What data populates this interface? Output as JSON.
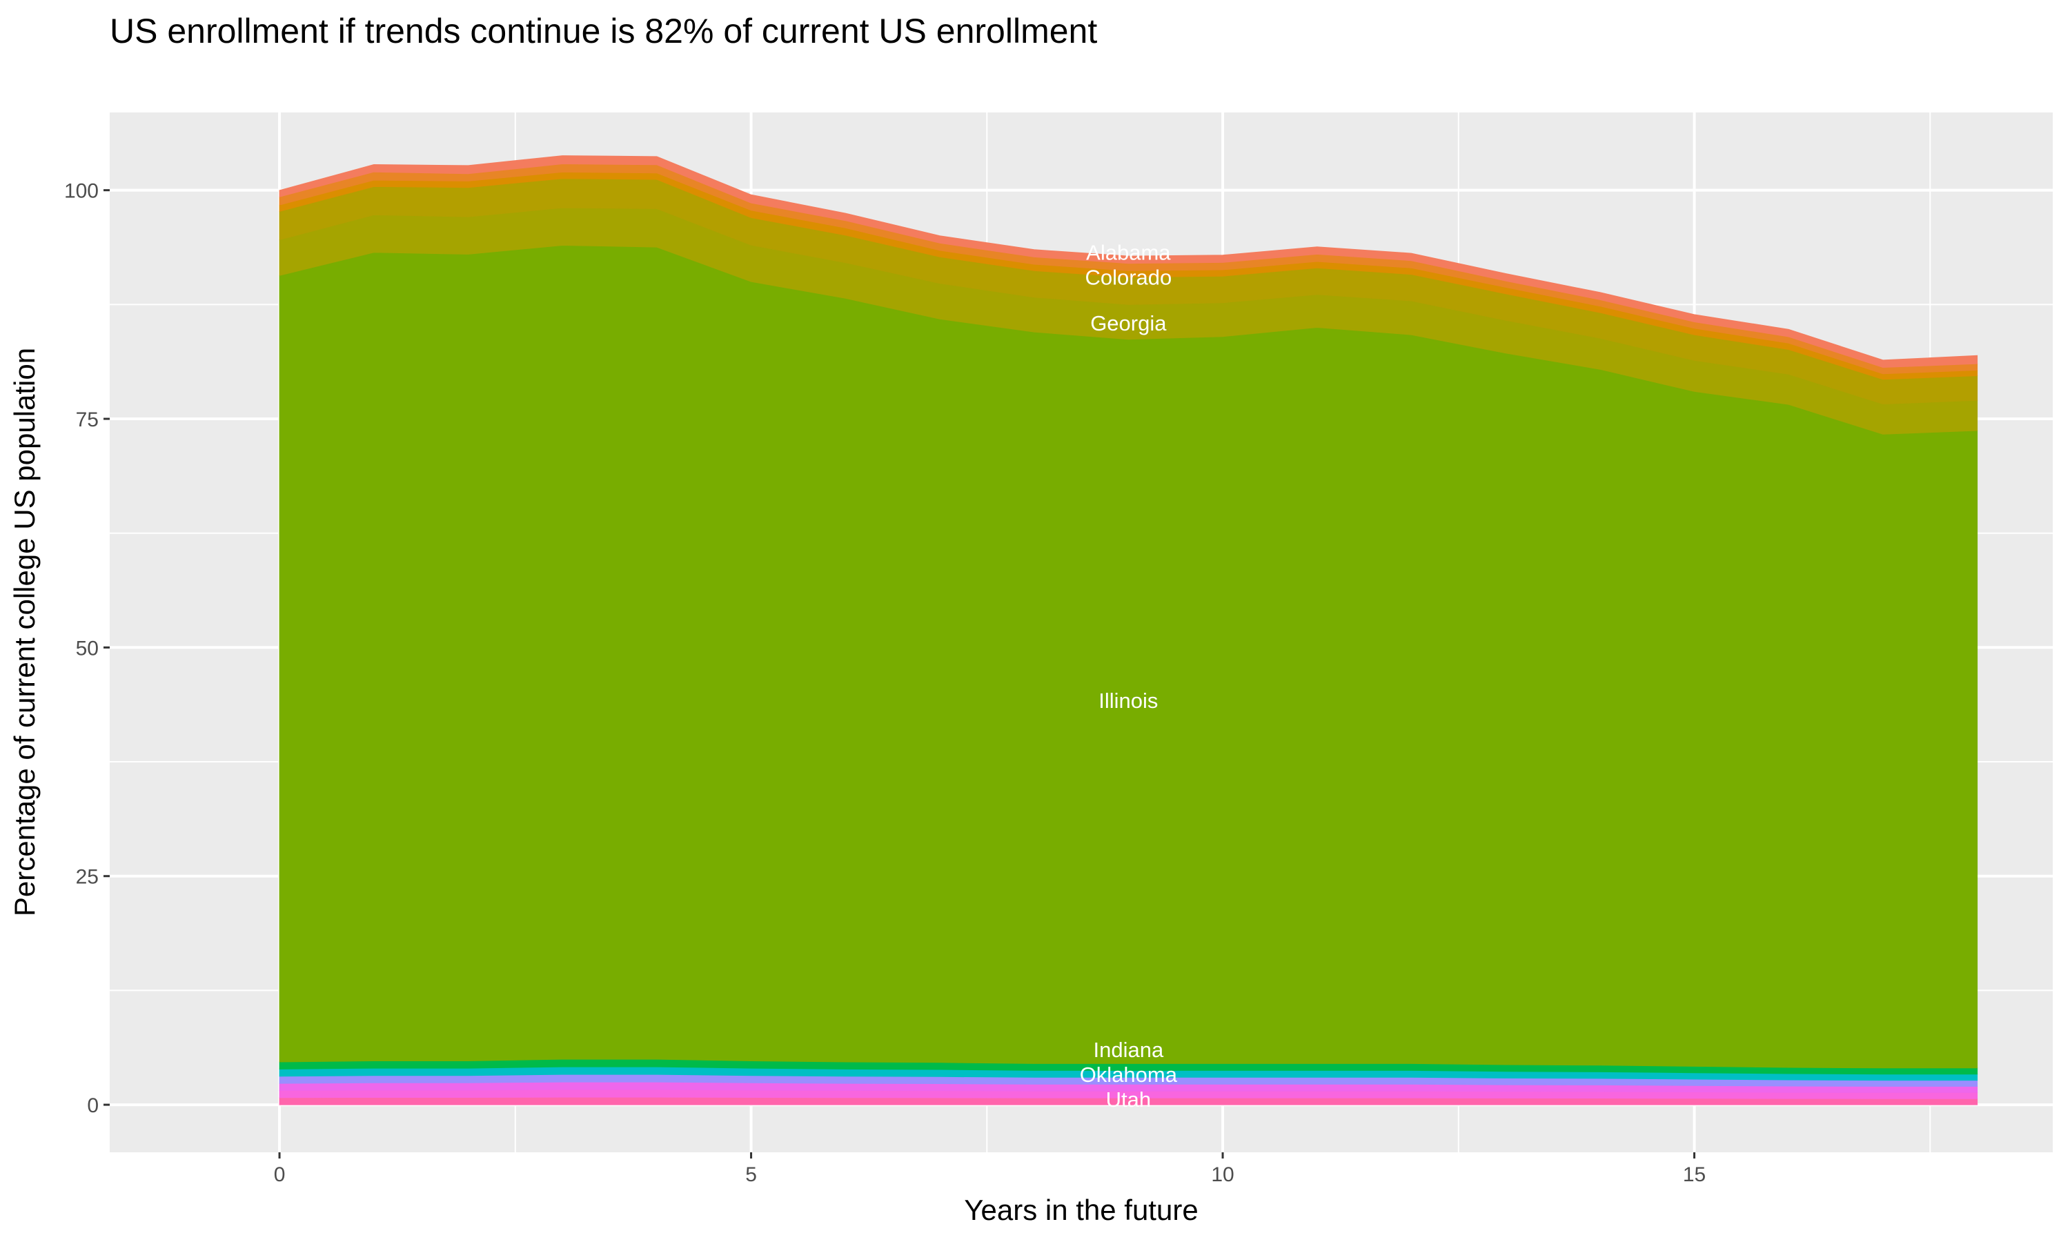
{
  "chart_data": {
    "type": "area",
    "stacked": true,
    "title": "US enrollment if trends continue is 82% of current US enrollment",
    "xlabel": "Years in the future",
    "ylabel": "Percentage of current college US population",
    "x": [
      0,
      1,
      2,
      3,
      4,
      5,
      6,
      7,
      8,
      9,
      10,
      11,
      12,
      13,
      14,
      15,
      16,
      17,
      18
    ],
    "xlim": [
      -1.8,
      18.8
    ],
    "ylim": [
      -5.2,
      108.5
    ],
    "x_ticks": [
      0,
      5,
      10,
      15
    ],
    "y_ticks": [
      0,
      25,
      50,
      75,
      100
    ],
    "x_tick_labels": [
      "0",
      "5",
      "10",
      "15"
    ],
    "y_tick_labels": [
      "0",
      "25",
      "50",
      "75",
      "100"
    ],
    "grid": true,
    "legend": "none",
    "panel_background": "#EBEBEB",
    "series_bottom_to_top": [
      {
        "name": "Utah",
        "color": "#FF65AC",
        "values": [
          0.78,
          0.8,
          0.8,
          0.83,
          0.83,
          0.8,
          0.78,
          0.77,
          0.75,
          0.75,
          0.75,
          0.75,
          0.75,
          0.73,
          0.72,
          0.7,
          0.68,
          0.67,
          0.67
        ]
      },
      {
        "color": "#F866DF",
        "values": [
          0.78,
          0.8,
          0.8,
          0.83,
          0.83,
          0.8,
          0.78,
          0.77,
          0.75,
          0.75,
          0.75,
          0.75,
          0.75,
          0.73,
          0.72,
          0.7,
          0.68,
          0.67,
          0.67
        ]
      },
      {
        "color": "#EE67EC",
        "values": [
          0.78,
          0.8,
          0.8,
          0.83,
          0.83,
          0.8,
          0.78,
          0.77,
          0.75,
          0.75,
          0.75,
          0.75,
          0.75,
          0.73,
          0.72,
          0.7,
          0.68,
          0.67,
          0.67
        ]
      },
      {
        "name": "Oklahoma",
        "color": "#9A8EFF",
        "values": [
          0.78,
          0.8,
          0.8,
          0.83,
          0.83,
          0.8,
          0.78,
          0.77,
          0.75,
          0.75,
          0.75,
          0.75,
          0.75,
          0.73,
          0.72,
          0.7,
          0.68,
          0.67,
          0.67
        ]
      },
      {
        "color": "#00BFC4",
        "values": [
          0.78,
          0.8,
          0.8,
          0.83,
          0.83,
          0.8,
          0.78,
          0.77,
          0.75,
          0.75,
          0.75,
          0.75,
          0.75,
          0.73,
          0.72,
          0.7,
          0.68,
          0.67,
          0.67
        ]
      },
      {
        "name": "Indiana",
        "color": "#00BA4A",
        "values": [
          0.78,
          0.8,
          0.8,
          0.83,
          0.83,
          0.8,
          0.78,
          0.77,
          0.75,
          0.75,
          0.75,
          0.75,
          0.75,
          0.73,
          0.72,
          0.7,
          0.68,
          0.67,
          0.67
        ]
      },
      {
        "name": "Illinois",
        "color": "#78AD00",
        "values": [
          86.0,
          88.4,
          88.2,
          89.0,
          88.8,
          85.2,
          83.5,
          81.3,
          80.0,
          79.2,
          79.5,
          80.5,
          79.7,
          77.8,
          76.1,
          73.8,
          72.5,
          69.3,
          69.7
        ]
      },
      {
        "name": "Georgia",
        "color": "#A5A400",
        "values": [
          3.9,
          4.1,
          4.1,
          4.1,
          4.2,
          4.0,
          3.9,
          3.9,
          3.8,
          3.8,
          3.7,
          3.6,
          3.7,
          3.6,
          3.4,
          3.4,
          3.3,
          3.3,
          3.3
        ]
      },
      {
        "name": "Colorado",
        "color": "#B39F00",
        "values": [
          3.1,
          3.1,
          3.2,
          3.2,
          3.2,
          3.0,
          3.0,
          2.9,
          2.9,
          3.0,
          2.9,
          2.9,
          2.9,
          2.9,
          2.8,
          2.8,
          2.7,
          2.7,
          2.7
        ]
      },
      {
        "color": "#DB8E00",
        "values": [
          0.7,
          0.7,
          0.7,
          0.7,
          0.7,
          0.8,
          0.8,
          0.7,
          0.7,
          0.7,
          0.7,
          0.7,
          0.7,
          0.7,
          0.7,
          0.7,
          0.7,
          0.6,
          0.6
        ]
      },
      {
        "color": "#E88526",
        "values": [
          0.9,
          0.9,
          0.8,
          0.9,
          0.9,
          0.8,
          0.8,
          0.8,
          0.8,
          0.8,
          0.8,
          0.8,
          0.8,
          0.7,
          0.7,
          0.7,
          0.7,
          0.7,
          0.7
        ]
      },
      {
        "name": "Alabama",
        "color": "#F47C5E",
        "values": [
          0.7,
          0.8,
          0.9,
          0.9,
          0.9,
          0.9,
          0.8,
          0.8,
          0.8,
          0.8,
          0.8,
          0.8,
          0.8,
          0.8,
          0.8,
          0.8,
          0.8,
          0.8,
          0.9
        ]
      }
    ],
    "annotations": [
      {
        "text": "Alabama",
        "x": 9,
        "y": 92.3
      },
      {
        "text": "Colorado",
        "x": 9,
        "y": 90.5
      },
      {
        "text": "Georgia",
        "x": 9,
        "y": 85.5
      },
      {
        "text": "Illinois",
        "x": 9,
        "y": 44.2
      },
      {
        "text": "Indiana",
        "x": 9,
        "y": 4.5
      },
      {
        "text": "Oklahoma",
        "x": 9,
        "y": 2.5
      },
      {
        "text": "Utah",
        "x": 9,
        "y": 0.6
      }
    ]
  }
}
